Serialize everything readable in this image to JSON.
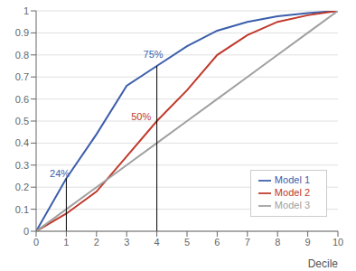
{
  "chart_data": {
    "type": "line",
    "xlabel": "Decile",
    "x": [
      0,
      1,
      2,
      3,
      4,
      5,
      6,
      7,
      8,
      9,
      10
    ],
    "series": [
      {
        "name": "Model 1",
        "color": "#3B5EAB",
        "values": [
          0,
          0.24,
          0.44,
          0.66,
          0.75,
          0.84,
          0.91,
          0.95,
          0.975,
          0.99,
          1.0
        ]
      },
      {
        "name": "Model 2",
        "color": "#C0392B",
        "values": [
          0,
          0.08,
          0.18,
          0.34,
          0.5,
          0.64,
          0.8,
          0.89,
          0.95,
          0.98,
          1.0
        ]
      },
      {
        "name": "Model 3",
        "color": "#A0A0A0",
        "values": [
          0,
          0.1,
          0.2,
          0.3,
          0.4,
          0.5,
          0.6,
          0.7,
          0.8,
          0.9,
          1.0
        ]
      }
    ],
    "vlines": [
      {
        "x": 1,
        "y": 0.24,
        "color": "#000000"
      },
      {
        "x": 4,
        "y": 0.75,
        "color": "#000000"
      }
    ],
    "annotations": [
      {
        "text": "24%",
        "x": 0.45,
        "y": 0.245,
        "color": "#3B5EAB"
      },
      {
        "text": "50%",
        "x": 3.15,
        "y": 0.505,
        "color": "#C0392B"
      },
      {
        "text": "75%",
        "x": 3.55,
        "y": 0.785,
        "color": "#3B5EAB"
      }
    ],
    "xlim": [
      0,
      10
    ],
    "ylim": [
      0,
      1
    ],
    "xticks": [
      0,
      1,
      2,
      3,
      4,
      5,
      6,
      7,
      8,
      9,
      10
    ],
    "yticks": [
      0,
      0.1,
      0.2,
      0.3,
      0.4,
      0.5,
      0.6,
      0.7,
      0.8,
      0.9,
      1
    ],
    "grid": "y",
    "legend": "lower right"
  }
}
